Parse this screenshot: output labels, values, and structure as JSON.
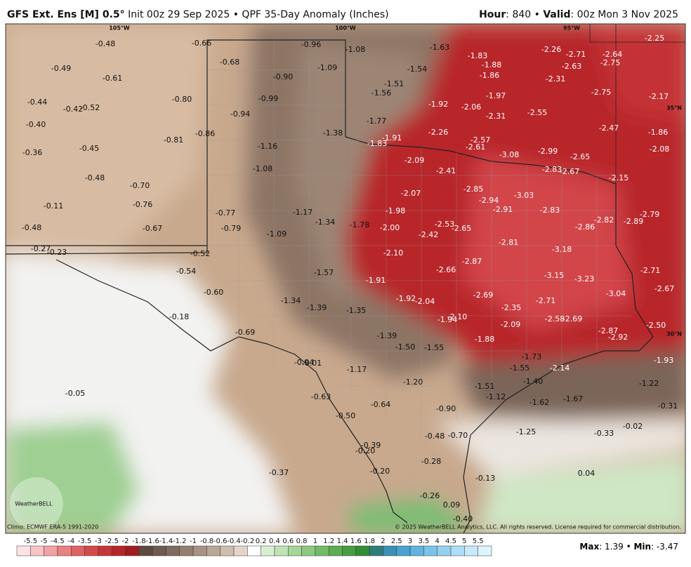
{
  "header": {
    "model": "GFS Ext. Ens [M] 0.5°",
    "init": " Init 00z 29 Sep 2025 • QPF 35-Day Anomaly (Inches)",
    "hour_label": "Hour",
    "hour": ": 840 • ",
    "valid_label": "Valid",
    "valid": ": 00z Mon 3 Nov 2025"
  },
  "map": {
    "lon_labels": [
      "105°W",
      "100°W",
      "95°W"
    ],
    "lat_labels": [
      "35°N",
      "30°N"
    ],
    "values": [
      "-0.48",
      "-0.66",
      "-0.96",
      "-1.08",
      "-1.63",
      "-1.83",
      "-2.26",
      "-2.71",
      "-2.64",
      "-2.25",
      "-0.49",
      "-0.68",
      "-1.09",
      "-1.88",
      "-2.63",
      "-2.75",
      "-0.61",
      "-0.90",
      "-1.54",
      "-1.86",
      "-2.31",
      "-1.51",
      "-1.56",
      "-1.97",
      "-2.75",
      "-2.17",
      "-0.44",
      "-0.80",
      "-0.99",
      "-0.42",
      "-0.52",
      "-1.92",
      "-2.06",
      "-2.55",
      "-0.40",
      "-0.94",
      "-1.77",
      "-2.31",
      "-2.47",
      "-1.86",
      "-0.81",
      "-0.86",
      "-1.38",
      "-1.91",
      "-2.26",
      "-2.57",
      "-1.83",
      "-0.36",
      "-0.45",
      "-1.16",
      "-2.61",
      "-3.08",
      "-2.99",
      "-2.65",
      "-2.08",
      "-2.09",
      "-1.08",
      "-2.41",
      "-2.83",
      "-2.67",
      "-2.15",
      "-0.48",
      "-0.70",
      "-2.07",
      "-2.85",
      "-3.03",
      "-2.94",
      "-0.11",
      "-0.76",
      "-1.98",
      "-2.91",
      "-2.83",
      "-2.79",
      "-0.77",
      "-1.17",
      "-1.34",
      "-2.82",
      "-2.89",
      "-0.48",
      "-0.67",
      "-0.79",
      "-1.78",
      "-2.00",
      "-2.53",
      "-2.65",
      "-2.86",
      "-1.09",
      "-2.42",
      "-2.81",
      "-0.27",
      "-0.23",
      "-0.52",
      "-2.10",
      "-2.87",
      "-3.18",
      "-0.54",
      "-1.57",
      "-2.66",
      "-2.71",
      "-1.91",
      "-3.15",
      "-3.23",
      "-2.67",
      "-0.60",
      "-2.69",
      "-3.04",
      "-1.34",
      "-1.92",
      "-2.04",
      "-1.39",
      "-1.35",
      "-2.35",
      "-2.71",
      "-0.18",
      "-1.94",
      "-2.10",
      "-2.58",
      "-2.69",
      "-2.09",
      "-2.50",
      "-0.69",
      "-1.39",
      "-2.87",
      "-2.92",
      "-1.88",
      "-1.50",
      "-1.55",
      "-1.73",
      "-1.93",
      "-0.94",
      "-0.01",
      "-1.17",
      "-2.14",
      "-1.55",
      "-1.20",
      "-1.40",
      "-1.51",
      "-1.22",
      "-0.05",
      "-0.63",
      "-1.12",
      "-1.62",
      "-1.67",
      "-0.64",
      "-0.31",
      "-0.90",
      "-0.50",
      "-0.02",
      "-0.48",
      "-0.70",
      "-1.25",
      "-0.33",
      "-0.39",
      "-0.20",
      "-0.28",
      "-0.37",
      "-0.20",
      "0.04",
      "-0.13",
      "-0.26",
      "0.09",
      "-0.40"
    ]
  },
  "footer": {
    "climo": "Climo: ECMWF ERA-5 1991-2020",
    "copyright": "© 2025 WeatherBELL Analytics, LLC. All rights reserved. License required for commercial distribution.",
    "logo": "WeatherBELL",
    "max_label": "Max",
    "max": ": 1.39 • ",
    "min_label": "Min",
    "min": ": -3.47",
    "scale": [
      "-5.5",
      "-5",
      "-4.5",
      "-4",
      "-3.5",
      "-3",
      "-2.5",
      "-2",
      "-1.8",
      "-1.6",
      "-1.4",
      "-1.2",
      "-1",
      "-0.8",
      "-0.6",
      "-0.4",
      "-0.2",
      "0.2",
      "0.4",
      "0.6",
      "0.8",
      "1",
      "1.2",
      "1.4",
      "1.6",
      "1.8",
      "2",
      "2.5",
      "3",
      "3.5",
      "4",
      "4.5",
      "5",
      "5.5"
    ]
  }
}
